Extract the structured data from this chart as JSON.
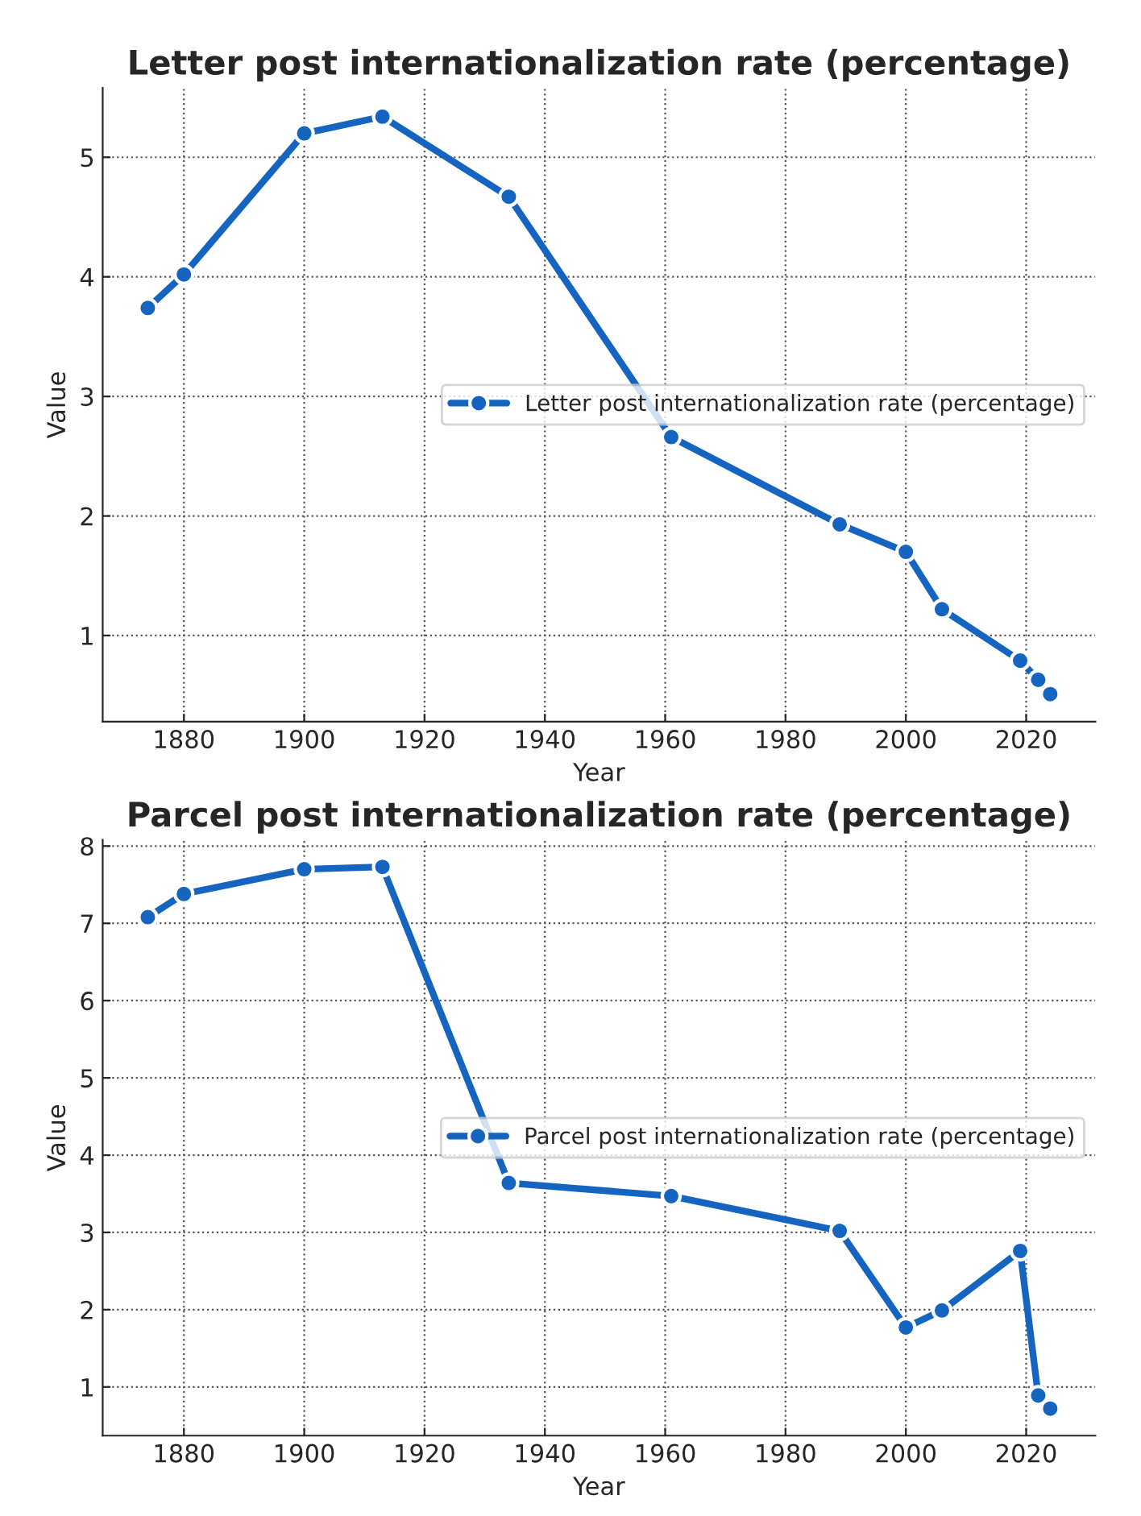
{
  "chart_data": [
    {
      "type": "line",
      "title": "Letter post internationalization rate (percentage)",
      "xlabel": "Year",
      "ylabel": "Value",
      "x": [
        1874,
        1880,
        1900,
        1913,
        1934,
        1961,
        1989,
        2000,
        2006,
        2019,
        2022,
        2024
      ],
      "series": [
        {
          "name": "Letter post internationalization rate (percentage)",
          "color": "#1565c0",
          "values": [
            3.74,
            4.02,
            5.2,
            5.34,
            4.67,
            2.66,
            1.93,
            1.7,
            1.22,
            0.79,
            0.63,
            0.51
          ]
        }
      ],
      "xlim": [
        1866.5,
        2031.5
      ],
      "ylim": [
        0.28,
        5.58
      ],
      "xticks": [
        1880,
        1900,
        1920,
        1940,
        1960,
        1980,
        2000,
        2020
      ],
      "yticks": [
        1,
        2,
        3,
        4,
        5
      ],
      "grid": true,
      "legend": "right",
      "marker": "circle",
      "line_style": "solid"
    },
    {
      "type": "line",
      "title": "Parcel post internationalization rate (percentage)",
      "xlabel": "Year",
      "ylabel": "Value",
      "x": [
        1874,
        1880,
        1900,
        1913,
        1934,
        1961,
        1989,
        2000,
        2006,
        2019,
        2022,
        2024
      ],
      "series": [
        {
          "name": "Parcel post internationalization rate (percentage)",
          "color": "#1565c0",
          "values": [
            7.08,
            7.38,
            7.7,
            7.73,
            3.64,
            3.47,
            3.02,
            1.77,
            1.99,
            2.76,
            0.89,
            0.72
          ]
        }
      ],
      "xlim": [
        1866.5,
        2031.5
      ],
      "ylim": [
        0.37,
        8.08
      ],
      "xticks": [
        1880,
        1900,
        1920,
        1940,
        1960,
        1980,
        2000,
        2020
      ],
      "yticks": [
        1,
        2,
        3,
        4,
        5,
        6,
        7,
        8
      ],
      "grid": true,
      "legend": "right",
      "marker": "circle",
      "line_style": "solid"
    }
  ]
}
